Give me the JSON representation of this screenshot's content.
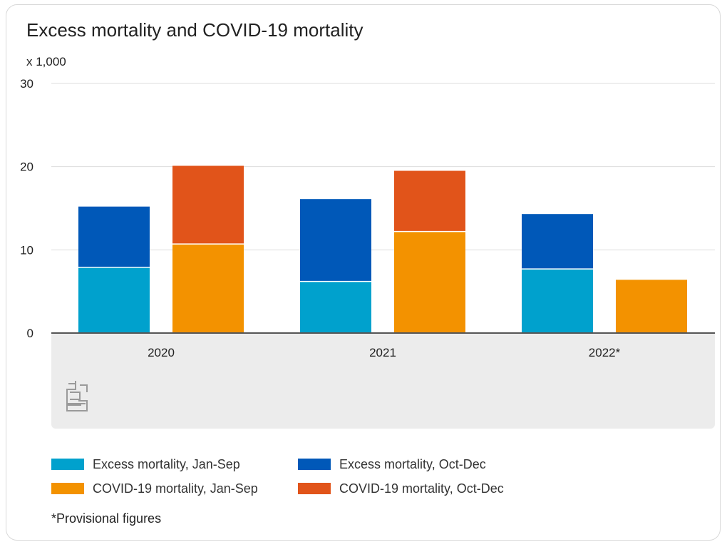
{
  "chart_data": {
    "type": "bar",
    "stacked": true,
    "title": "Excess mortality and COVID-19 mortality",
    "unit_label": "x 1,000",
    "categories": [
      "2020",
      "2021",
      "2022*"
    ],
    "ylim": [
      0,
      30
    ],
    "yticks": [
      "0",
      "10",
      "20",
      "30"
    ],
    "grid": true,
    "groups": [
      {
        "name": "Excess mortality",
        "series": [
          {
            "name": "Excess mortality, Jan-Sep",
            "color": "#00a1cd",
            "values": [
              7.9,
              6.2,
              7.7
            ]
          },
          {
            "name": "Excess mortality, Oct-Dec",
            "color": "#0058b8",
            "values": [
              7.3,
              9.9,
              6.6
            ]
          }
        ]
      },
      {
        "name": "COVID-19 mortality",
        "series": [
          {
            "name": "COVID-19 mortality, Jan-Sep",
            "color": "#f39200",
            "values": [
              10.7,
              12.2,
              6.4
            ]
          },
          {
            "name": "COVID-19 mortality, Oct-Dec",
            "color": "#e1541a",
            "values": [
              9.4,
              7.3,
              0
            ]
          }
        ]
      }
    ],
    "legend_position": "bottom",
    "footnote": "*Provisional figures"
  },
  "logo": {
    "text": "cbs",
    "icon": "cbs-logo-icon",
    "color": "#9a9a9a"
  }
}
